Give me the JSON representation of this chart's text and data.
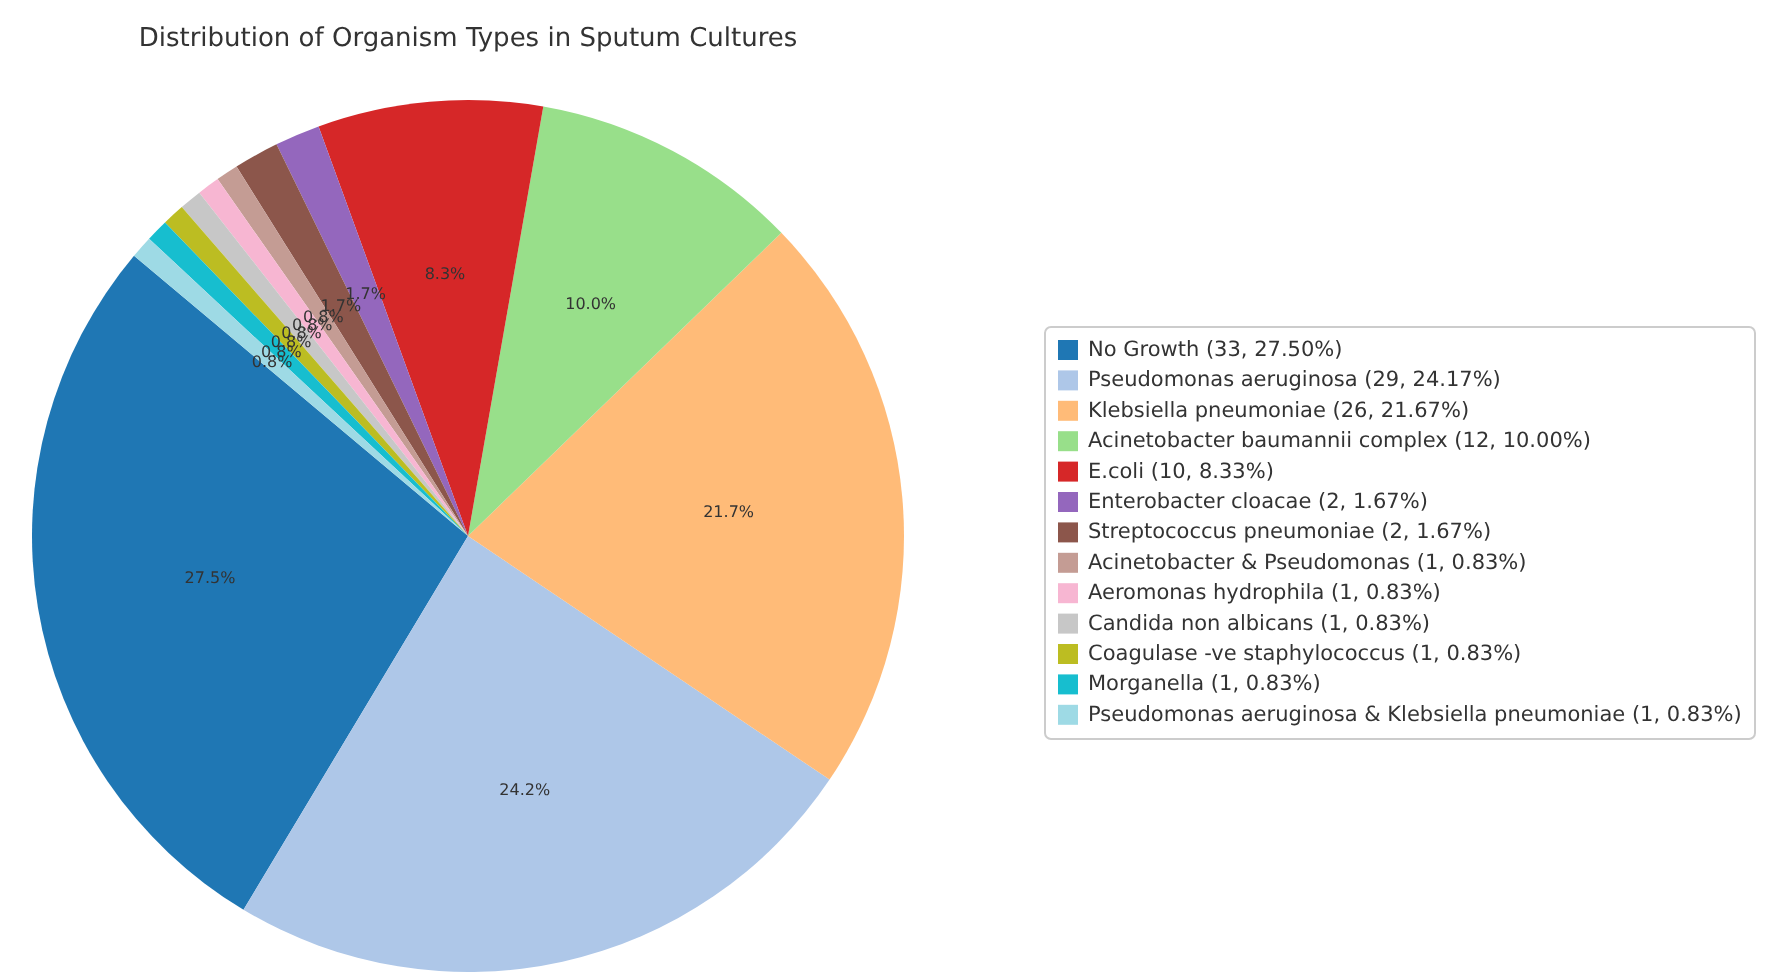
{
  "chart_data": {
    "type": "pie",
    "title": "Distribution of Organism Types in Sputum Cultures",
    "categories": [
      "No Growth (33, 27.50%)",
      "Pseudomonas aeruginosa (29, 24.17%)",
      "Klebsiella pneumoniae (26, 21.67%)",
      "Acinetobacter baumannii complex (12, 10.00%)",
      "E.coli (10, 8.33%)",
      "Enterobacter cloacae (2, 1.67%)",
      "Streptococcus pneumoniae (2, 1.67%)",
      "Acinetobacter & Pseudomonas (1, 0.83%)",
      "Aeromonas hydrophila (1, 0.83%)",
      "Candida non albicans (1, 0.83%)",
      "Coagulase -ve staphylococcus (1, 0.83%)",
      "Morganella (1, 0.83%)",
      "Pseudomonas aeruginosa & Klebsiella pneumoniae (1, 0.83%)"
    ],
    "values": [
      27.5,
      24.17,
      21.67,
      10.0,
      8.33,
      1.67,
      1.67,
      0.83,
      0.83,
      0.83,
      0.83,
      0.83,
      0.83
    ],
    "colors": [
      "#1f77b4",
      "#aec7e8",
      "#ffbb78",
      "#98df8a",
      "#d62728",
      "#9467bd",
      "#8c564b",
      "#c49c94",
      "#f7b6d2",
      "#c7c7c7",
      "#bcbd22",
      "#17becf",
      "#9edae5"
    ],
    "value_labels": [
      "27.5%",
      "24.2%",
      "21.7%",
      "10.0%",
      "8.3%",
      "1.7%",
      "1.7%",
      "0.8%",
      "0.8%",
      "0.8%",
      "0.8%",
      "0.8%",
      "0.8%"
    ],
    "legend": "right"
  }
}
